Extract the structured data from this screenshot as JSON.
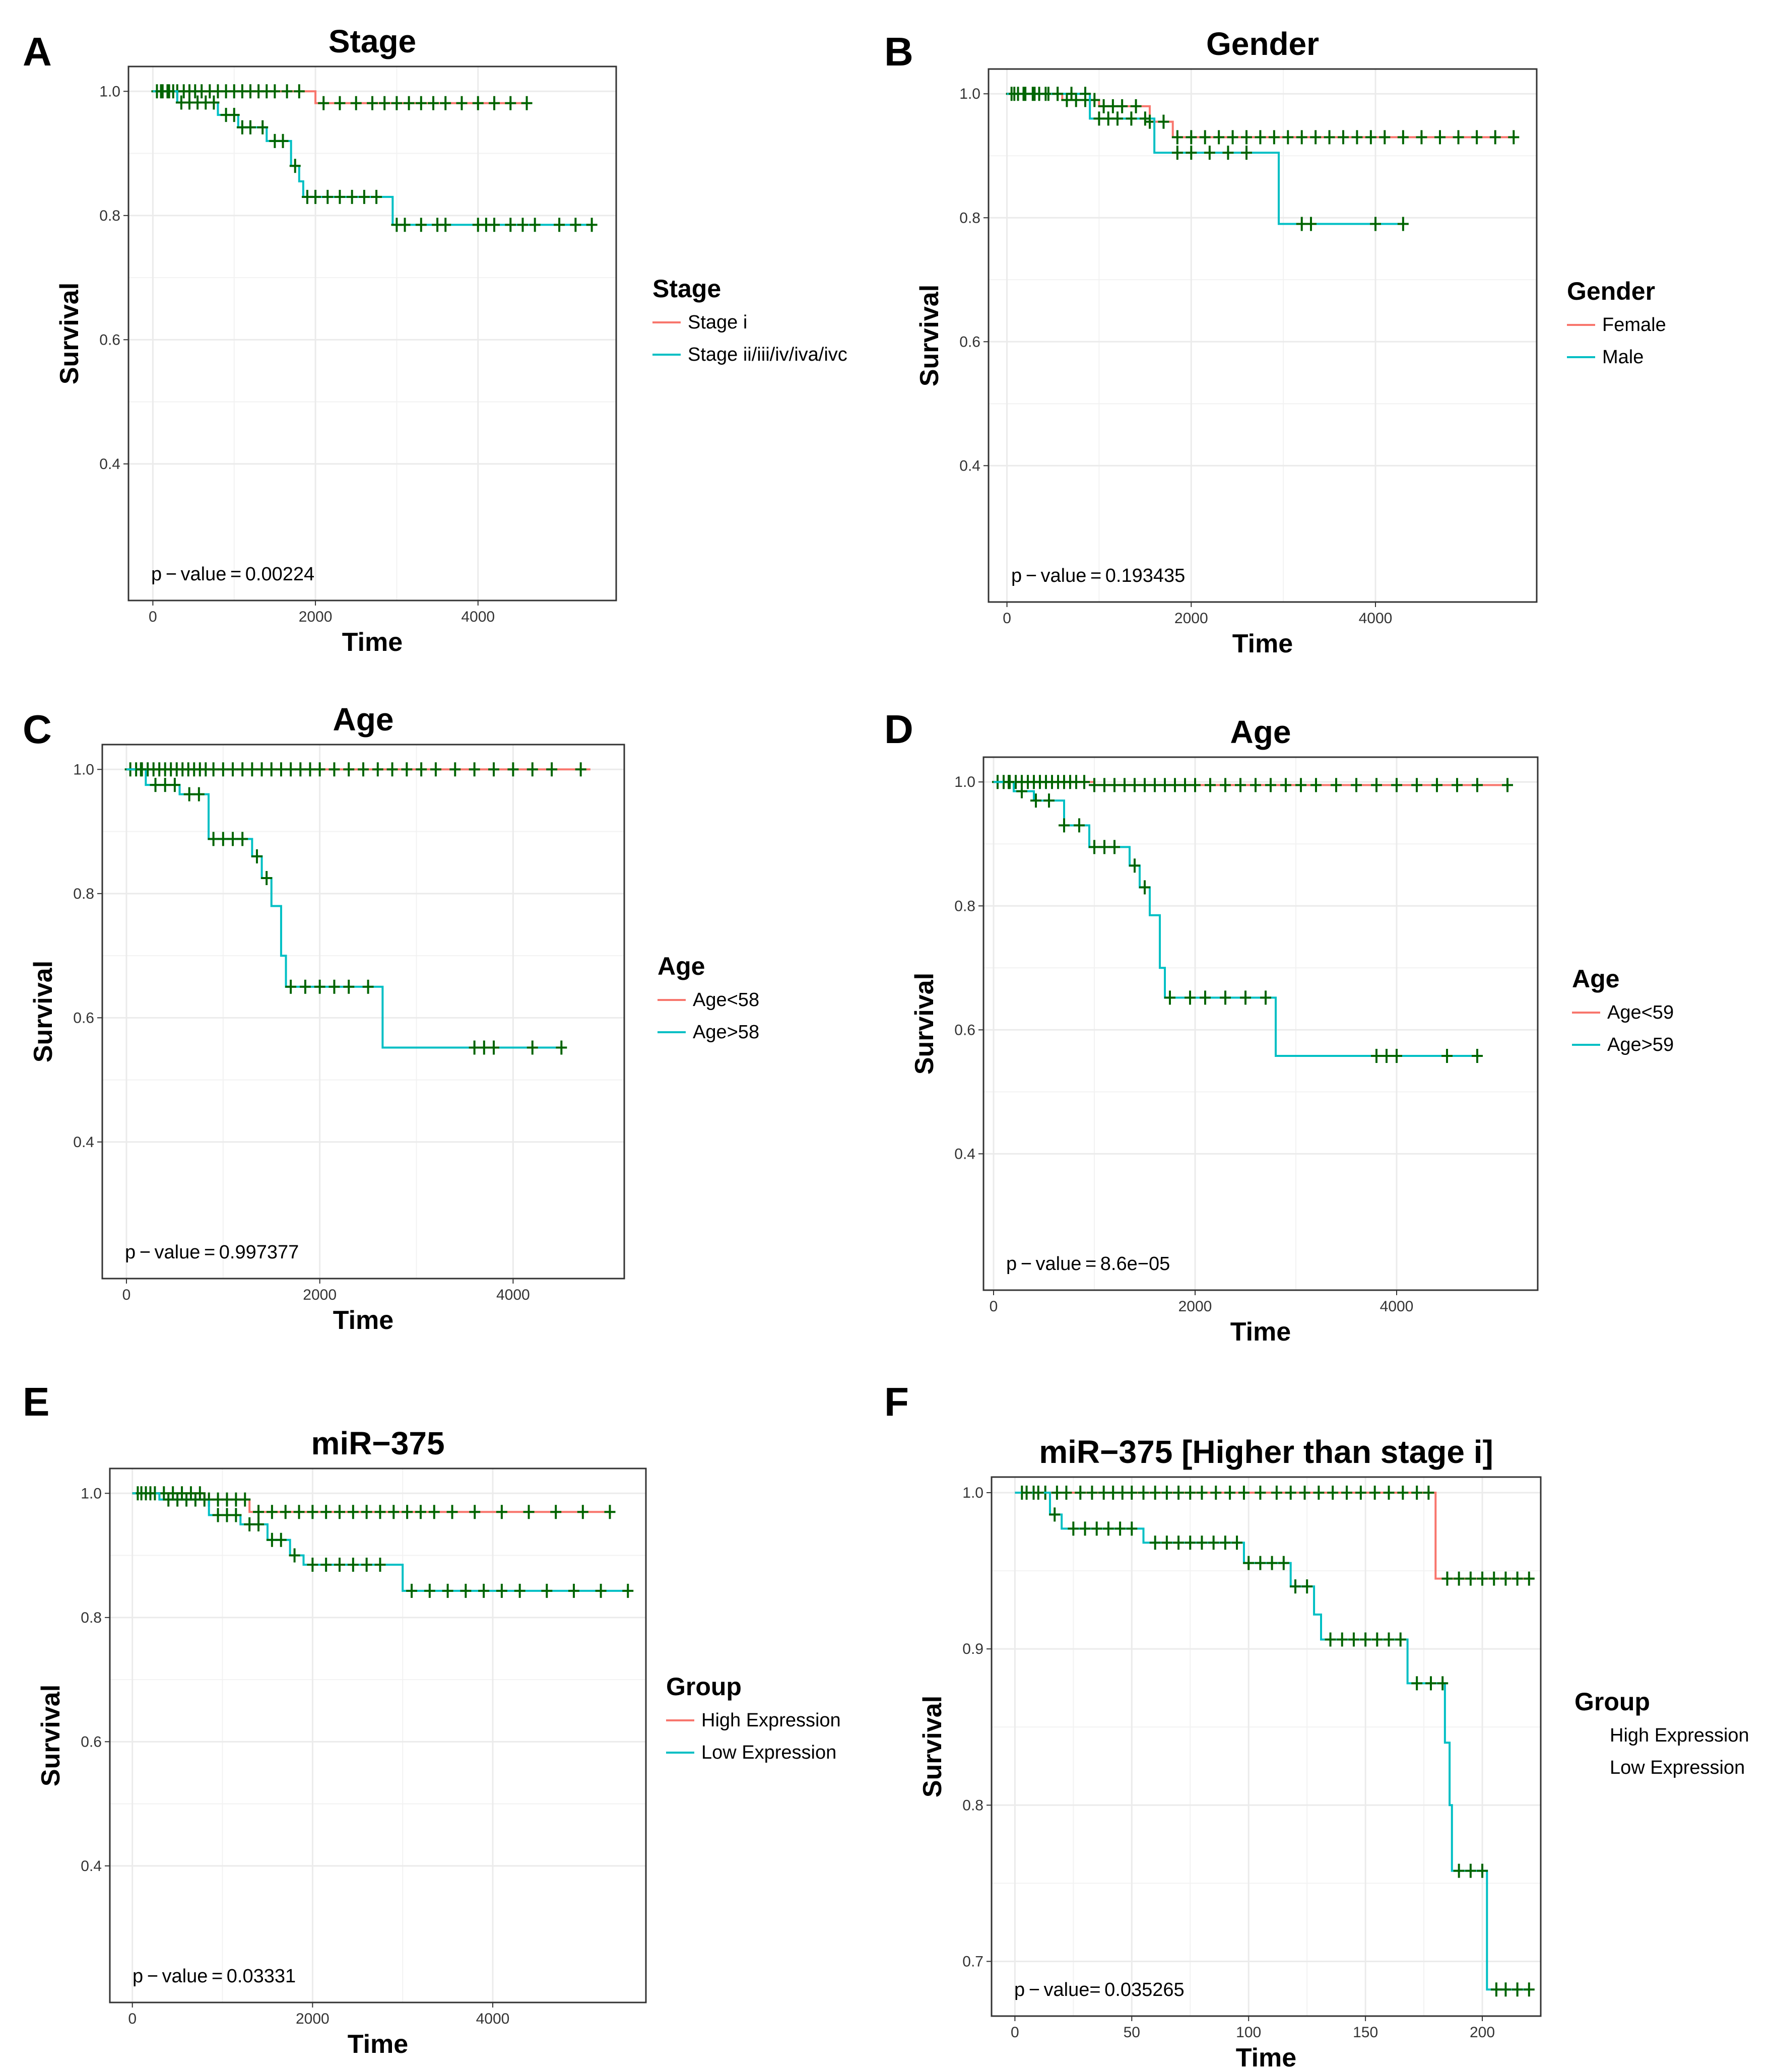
{
  "colors": {
    "high": "#F8766D",
    "low": "#00BFC4",
    "censor": "#006400",
    "grid": "#EBEBEB",
    "frame": "#333333"
  },
  "chart_data": [
    {
      "letter": "A",
      "type": "line",
      "title": "Stage",
      "xlabel": "Time",
      "ylabel": "Survival",
      "xlim": [
        -300,
        5700
      ],
      "ylim": [
        0.18,
        1.04
      ],
      "xticks": [
        0,
        2000,
        4000
      ],
      "yticks": [
        0.4,
        0.6,
        0.8,
        1.0
      ],
      "xtick_labels": [
        "0",
        "2000",
        "4000"
      ],
      "ytick_labels": [
        "0.4",
        "0.6",
        "0.8",
        "1.0"
      ],
      "pvalue_label": "p − value = 0.00224",
      "legend_title": "Stage",
      "legend_show_lines": true,
      "series": [
        {
          "name": "Stage i",
          "color_key": "high",
          "steps": [
            [
              0,
              1.0
            ],
            [
              2000,
              0.981
            ],
            [
              4600,
              0.981
            ]
          ],
          "censor_x": [
            50,
            120,
            180,
            250,
            300,
            380,
            450,
            520,
            600,
            700,
            800,
            900,
            1000,
            1100,
            1200,
            1300,
            1400,
            1500,
            1650,
            1800,
            2100,
            2300,
            2500,
            2700,
            2850,
            3000,
            3150,
            3300,
            3450,
            3600,
            3800,
            4000,
            4200,
            4400,
            4600
          ]
        },
        {
          "name": "Stage ii/iii/iv/iva/ivc",
          "color_key": "low",
          "steps": [
            [
              0,
              1.0
            ],
            [
              300,
              0.982
            ],
            [
              800,
              0.962
            ],
            [
              1050,
              0.942
            ],
            [
              1400,
              0.92
            ],
            [
              1700,
              0.88
            ],
            [
              1800,
              0.855
            ],
            [
              1850,
              0.83
            ],
            [
              2950,
              0.785
            ],
            [
              5400,
              0.785
            ]
          ],
          "censor_x": [
            100,
            200,
            350,
            450,
            550,
            650,
            750,
            900,
            1000,
            1100,
            1200,
            1350,
            1500,
            1600,
            1750,
            1900,
            2000,
            2150,
            2300,
            2450,
            2600,
            2750,
            3000,
            3100,
            3300,
            3500,
            3600,
            4000,
            4100,
            4200,
            4400,
            4550,
            4700,
            5000,
            5200,
            5400
          ]
        }
      ]
    },
    {
      "letter": "B",
      "type": "line",
      "title": "Gender",
      "xlabel": "Time",
      "ylabel": "Survival",
      "xlim": [
        -200,
        5750
      ],
      "ylim": [
        0.18,
        1.04
      ],
      "xticks": [
        0,
        2000,
        4000
      ],
      "yticks": [
        0.4,
        0.6,
        0.8,
        1.0
      ],
      "xtick_labels": [
        "0",
        "2000",
        "4000"
      ],
      "ytick_labels": [
        "0.4",
        "0.6",
        "0.8",
        "1.0"
      ],
      "pvalue_label": "p − value = 0.193435",
      "legend_title": "Gender",
      "legend_show_lines": true,
      "series": [
        {
          "name": "Female",
          "color_key": "high",
          "steps": [
            [
              0,
              1.0
            ],
            [
              600,
              0.99
            ],
            [
              1000,
              0.98
            ],
            [
              1550,
              0.955
            ],
            [
              1800,
              0.93
            ],
            [
              5500,
              0.93
            ]
          ],
          "censor_x": [
            50,
            120,
            200,
            280,
            350,
            450,
            550,
            650,
            750,
            850,
            950,
            1050,
            1150,
            1250,
            1400,
            1550,
            1700,
            1850,
            2000,
            2150,
            2300,
            2450,
            2600,
            2750,
            2900,
            3050,
            3200,
            3350,
            3500,
            3650,
            3800,
            3950,
            4100,
            4300,
            4500,
            4700,
            4900,
            5100,
            5300,
            5500
          ]
        },
        {
          "name": "Male",
          "color_key": "low",
          "steps": [
            [
              0,
              1.0
            ],
            [
              900,
              0.96
            ],
            [
              1600,
              0.905
            ],
            [
              2950,
              0.79
            ],
            [
              4300,
              0.79
            ]
          ],
          "censor_x": [
            80,
            180,
            300,
            420,
            550,
            700,
            850,
            1000,
            1100,
            1200,
            1350,
            1500,
            1850,
            2000,
            2200,
            2400,
            2600,
            3200,
            3300,
            4000,
            4300
          ]
        }
      ]
    },
    {
      "letter": "C",
      "type": "line",
      "title": "Age",
      "xlabel": "Time",
      "ylabel": "Survival",
      "xlim": [
        -250,
        5150
      ],
      "ylim": [
        0.18,
        1.04
      ],
      "xticks": [
        0,
        2000,
        4000
      ],
      "yticks": [
        0.4,
        0.6,
        0.8,
        1.0
      ],
      "xtick_labels": [
        "0",
        "2000",
        "4000"
      ],
      "ytick_labels": [
        "0.4",
        "0.6",
        "0.8",
        "1.0"
      ],
      "pvalue_label": "p − value = 0.997377",
      "legend_title": "Age",
      "legend_show_lines": true,
      "series": [
        {
          "name": "Age<58",
          "color_key": "high",
          "steps": [
            [
              0,
              1.0
            ],
            [
              4800,
              1.0
            ]
          ],
          "censor_x": [
            40,
            100,
            160,
            220,
            280,
            340,
            400,
            460,
            520,
            580,
            640,
            700,
            760,
            820,
            900,
            1000,
            1100,
            1200,
            1300,
            1400,
            1500,
            1600,
            1700,
            1800,
            1900,
            2000,
            2150,
            2300,
            2450,
            2600,
            2750,
            2900,
            3050,
            3200,
            3400,
            3600,
            3800,
            4000,
            4200,
            4400,
            4700
          ]
        },
        {
          "name": "Age>58",
          "color_key": "low",
          "steps": [
            [
              0,
              1.0
            ],
            [
              200,
              0.975
            ],
            [
              550,
              0.96
            ],
            [
              850,
              0.888
            ],
            [
              1300,
              0.86
            ],
            [
              1400,
              0.825
            ],
            [
              1500,
              0.78
            ],
            [
              1600,
              0.7
            ],
            [
              1650,
              0.65
            ],
            [
              2650,
              0.552
            ],
            [
              4500,
              0.552
            ]
          ],
          "censor_x": [
            150,
            300,
            400,
            500,
            650,
            750,
            900,
            1000,
            1100,
            1200,
            1350,
            1450,
            1700,
            1850,
            2000,
            2150,
            2300,
            2500,
            3600,
            3700,
            3800,
            4200,
            4500
          ]
        }
      ]
    },
    {
      "letter": "D",
      "type": "line",
      "title": "Age",
      "xlabel": "Time",
      "ylabel": "Survival",
      "xlim": [
        -100,
        5400
      ],
      "ylim": [
        0.18,
        1.04
      ],
      "xticks": [
        0,
        2000,
        4000
      ],
      "yticks": [
        0.4,
        0.6,
        0.8,
        1.0
      ],
      "xtick_labels": [
        "0",
        "2000",
        "4000"
      ],
      "ytick_labels": [
        "0.4",
        "0.6",
        "0.8",
        "1.0"
      ],
      "pvalue_label": "p − value = 8.6e−05",
      "legend_title": "Age",
      "legend_show_lines": true,
      "series": [
        {
          "name": "Age<59",
          "color_key": "high",
          "steps": [
            [
              0,
              1.0
            ],
            [
              1000,
              0.995
            ],
            [
              5100,
              0.995
            ]
          ],
          "censor_x": [
            40,
            100,
            160,
            220,
            280,
            340,
            400,
            460,
            520,
            580,
            640,
            700,
            760,
            820,
            900,
            1000,
            1100,
            1200,
            1300,
            1400,
            1500,
            1600,
            1700,
            1800,
            1900,
            2000,
            2150,
            2300,
            2450,
            2600,
            2750,
            2900,
            3050,
            3200,
            3400,
            3600,
            3800,
            4000,
            4200,
            4400,
            4600,
            4800,
            5100
          ]
        },
        {
          "name": "Age>59",
          "color_key": "low",
          "steps": [
            [
              0,
              1.0
            ],
            [
              200,
              0.985
            ],
            [
              400,
              0.97
            ],
            [
              700,
              0.93
            ],
            [
              950,
              0.895
            ],
            [
              1350,
              0.865
            ],
            [
              1450,
              0.83
            ],
            [
              1550,
              0.785
            ],
            [
              1650,
              0.7
            ],
            [
              1700,
              0.652
            ],
            [
              2800,
              0.558
            ],
            [
              4800,
              0.558
            ]
          ],
          "censor_x": [
            150,
            280,
            420,
            550,
            700,
            850,
            1000,
            1100,
            1200,
            1400,
            1500,
            1750,
            1950,
            2100,
            2300,
            2500,
            2700,
            3800,
            3900,
            4000,
            4500,
            4800
          ]
        }
      ]
    },
    {
      "letter": "E",
      "type": "line",
      "title": "miR−375",
      "xlabel": "Time",
      "ylabel": "Survival",
      "xlim": [
        -250,
        5700
      ],
      "ylim": [
        0.18,
        1.04
      ],
      "xticks": [
        0,
        2000,
        4000
      ],
      "yticks": [
        0.4,
        0.6,
        0.8,
        1.0
      ],
      "xtick_labels": [
        "0",
        "2000",
        "4000"
      ],
      "ytick_labels": [
        "0.4",
        "0.6",
        "0.8",
        "1.0"
      ],
      "pvalue_label": "p − value = 0.03331",
      "legend_title": "Group",
      "legend_show_lines": true,
      "series": [
        {
          "name": "High Expression",
          "color_key": "high",
          "steps": [
            [
              0,
              1.0
            ],
            [
              800,
              0.99
            ],
            [
              1300,
              0.97
            ],
            [
              5300,
              0.97
            ]
          ],
          "censor_x": [
            60,
            150,
            250,
            350,
            450,
            550,
            650,
            750,
            850,
            950,
            1050,
            1150,
            1250,
            1400,
            1550,
            1700,
            1850,
            2000,
            2150,
            2300,
            2450,
            2600,
            2750,
            2900,
            3050,
            3200,
            3350,
            3550,
            3800,
            4100,
            4400,
            4700,
            5000,
            5300
          ]
        },
        {
          "name": "Low Expression",
          "color_key": "low",
          "steps": [
            [
              0,
              1.0
            ],
            [
              300,
              0.99
            ],
            [
              850,
              0.965
            ],
            [
              1200,
              0.95
            ],
            [
              1500,
              0.925
            ],
            [
              1750,
              0.9
            ],
            [
              1900,
              0.885
            ],
            [
              3000,
              0.843
            ],
            [
              5500,
              0.843
            ]
          ],
          "censor_x": [
            100,
            200,
            400,
            500,
            600,
            700,
            800,
            950,
            1050,
            1150,
            1300,
            1400,
            1550,
            1650,
            1800,
            2000,
            2150,
            2300,
            2450,
            2600,
            2750,
            3100,
            3300,
            3500,
            3700,
            3900,
            4100,
            4300,
            4600,
            4900,
            5200,
            5500
          ]
        }
      ]
    },
    {
      "letter": "F",
      "type": "line",
      "title": "miR−375 [Higher than stage i]",
      "xlabel": "Time",
      "ylabel": "Survival",
      "xlim": [
        -10,
        225
      ],
      "ylim": [
        0.665,
        1.01
      ],
      "xticks": [
        0,
        50,
        100,
        150,
        200
      ],
      "yticks": [
        0.7,
        0.8,
        0.9,
        1.0
      ],
      "xtick_labels": [
        "0",
        "50",
        "100",
        "150",
        "200"
      ],
      "ytick_labels": [
        "0.7",
        "0.8",
        "0.9",
        "1.0"
      ],
      "pvalue_label": "p − value= 0.035265",
      "legend_title": "Group",
      "legend_show_lines": false,
      "series": [
        {
          "name": "High Expression",
          "color_key": "high",
          "steps": [
            [
              0,
              1.0
            ],
            [
              180,
              0.945
            ],
            [
              222,
              0.945
            ]
          ],
          "censor_x": [
            3,
            8,
            13,
            18,
            22,
            28,
            33,
            38,
            42,
            46,
            50,
            55,
            60,
            65,
            70,
            75,
            80,
            86,
            92,
            98,
            105,
            112,
            118,
            124,
            130,
            136,
            142,
            148,
            154,
            160,
            166,
            172,
            177,
            185,
            190,
            195,
            200,
            205,
            210,
            215,
            220
          ]
        },
        {
          "name": "Low Expression",
          "color_key": "low",
          "steps": [
            [
              0,
              1.0
            ],
            [
              15,
              0.986
            ],
            [
              20,
              0.977
            ],
            [
              55,
              0.968
            ],
            [
              98,
              0.955
            ],
            [
              118,
              0.94
            ],
            [
              128,
              0.922
            ],
            [
              131,
              0.906
            ],
            [
              168,
              0.878
            ],
            [
              184,
              0.84
            ],
            [
              186,
              0.8
            ],
            [
              187,
              0.758
            ],
            [
              202,
              0.682
            ],
            [
              220,
              0.682
            ]
          ],
          "censor_x": [
            5,
            10,
            17,
            25,
            30,
            35,
            40,
            45,
            50,
            60,
            65,
            70,
            75,
            80,
            85,
            90,
            95,
            100,
            105,
            110,
            115,
            120,
            125,
            135,
            140,
            145,
            150,
            155,
            160,
            165,
            172,
            178,
            183,
            190,
            195,
            200,
            206,
            210,
            215,
            220
          ]
        }
      ]
    }
  ]
}
